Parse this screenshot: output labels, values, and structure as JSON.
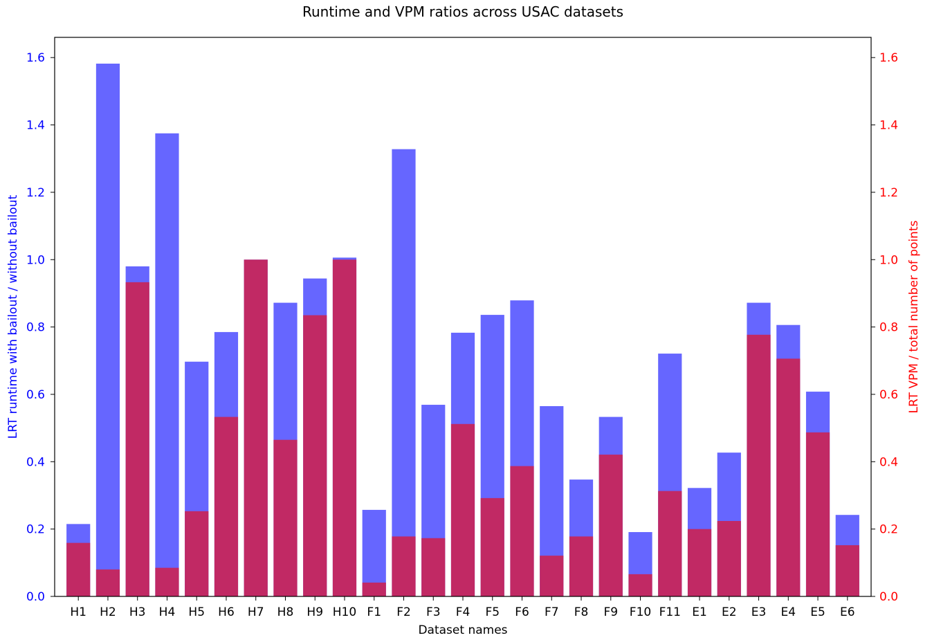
{
  "chart_data": {
    "type": "bar",
    "title": "Runtime and VPM ratios across USAC datasets",
    "xlabel": "Dataset names",
    "categories": [
      "H1",
      "H2",
      "H3",
      "H4",
      "H5",
      "H6",
      "H7",
      "H8",
      "H9",
      "H10",
      "F1",
      "F2",
      "F3",
      "F4",
      "F5",
      "F6",
      "F7",
      "F8",
      "F9",
      "F10",
      "F11",
      "E1",
      "E2",
      "E3",
      "E4",
      "E5",
      "E6"
    ],
    "left_axis": {
      "label": "LRT runtime with bailout / without bailout",
      "color": "#0000ff",
      "ylim": [
        0,
        1.66
      ],
      "ticks": [
        "0.0",
        "0.2",
        "0.4",
        "0.6",
        "0.8",
        "1.0",
        "1.2",
        "1.4",
        "1.6"
      ]
    },
    "right_axis": {
      "label": "LRT VPM / total number of points",
      "color": "#ff0000",
      "ylim": [
        0,
        1.66
      ],
      "ticks": [
        "0.0",
        "0.2",
        "0.4",
        "0.6",
        "0.8",
        "1.0",
        "1.2",
        "1.4",
        "1.6"
      ]
    },
    "series": [
      {
        "axis": "left",
        "color": "#6666ff",
        "values": [
          0.215,
          1.582,
          0.98,
          1.375,
          0.697,
          0.785,
          1.0,
          0.872,
          0.944,
          1.006,
          0.257,
          1.328,
          0.569,
          0.783,
          0.836,
          0.879,
          0.565,
          0.347,
          0.533,
          0.191,
          0.721,
          0.322,
          0.427,
          0.872,
          0.806,
          0.608,
          0.242
        ]
      },
      {
        "axis": "right",
        "color": "#c12964",
        "values": [
          0.159,
          0.08,
          0.933,
          0.085,
          0.253,
          0.533,
          1.0,
          0.465,
          0.835,
          1.0,
          0.041,
          0.178,
          0.173,
          0.512,
          0.292,
          0.387,
          0.121,
          0.178,
          0.421,
          0.066,
          0.313,
          0.2,
          0.224,
          0.777,
          0.706,
          0.487,
          0.152
        ]
      }
    ],
    "grid": false
  }
}
